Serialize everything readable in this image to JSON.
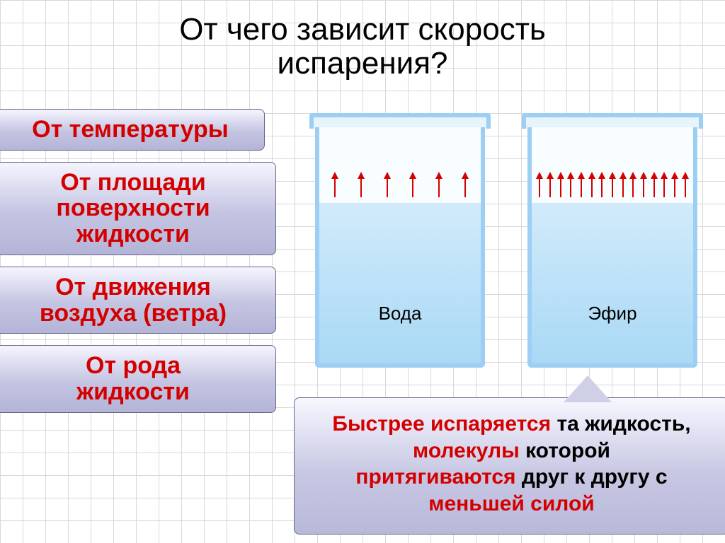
{
  "title_line1": "От чего зависит скорость",
  "title_line2": "испарения?",
  "factors": {
    "temperature": "От температуры",
    "surface_l1": "От площади",
    "surface_l2": "поверхности",
    "surface_l3": "жидкости",
    "air_l1": "От движения",
    "air_l2": "воздуха (ветра)",
    "kind_l1": "От рода",
    "kind_l2": "жидкости"
  },
  "beakers": {
    "water": {
      "label": "Вода",
      "arrow_count": 6
    },
    "ether": {
      "label": "Эфир",
      "arrow_count": 15
    }
  },
  "explanation": {
    "part1_hl": "Быстрее испаряется ",
    "part1_end": "та жидкость,",
    "part2_hl": "молекулы ",
    "part2_end": "которой",
    "part3_hl": "притягиваются ",
    "part3_end": "друг к другу с",
    "part4_hl": "меньшей силой"
  },
  "colors": {
    "highlight": "#d40000",
    "glass_border": "#9dcff4",
    "fluid_top": "#d3ecfb",
    "fluid_bottom": "#a9d8f5",
    "callout_top": "#f5f5ff",
    "callout_bottom": "#b4b4d8"
  }
}
